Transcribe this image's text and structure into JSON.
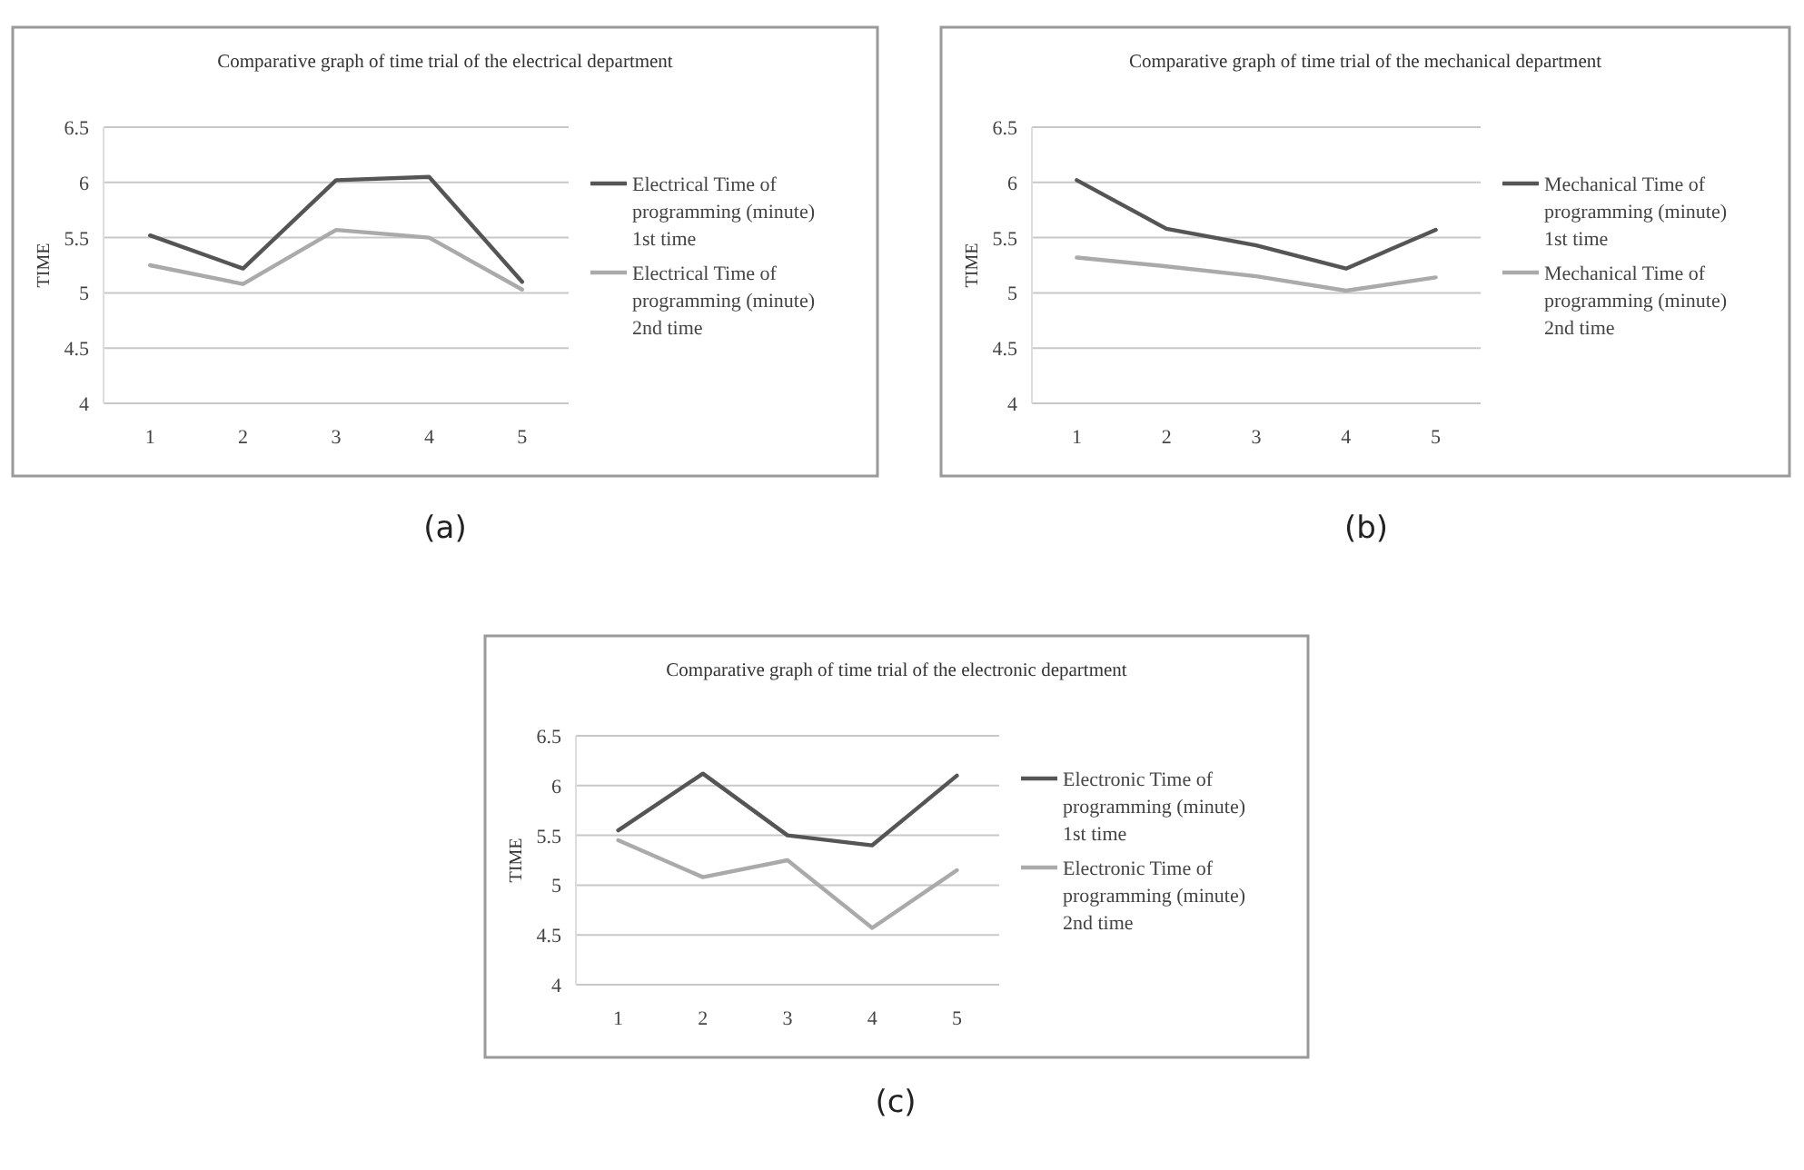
{
  "chart_data": [
    {
      "type": "line",
      "title": "Comparative graph  of time trial of the electrical department",
      "ylabel": "TIME",
      "categories": [
        "1",
        "2",
        "3",
        "4",
        "5"
      ],
      "ylim": [
        4,
        6.5
      ],
      "yticks": [
        4,
        4.5,
        5,
        5.5,
        6,
        6.5
      ],
      "grid": "y",
      "legend": "right",
      "annotations": [
        "(a)"
      ],
      "series": [
        {
          "name": "Electrical Time  of programming (minute) 1st time",
          "color": "#555555",
          "values": [
            5.52,
            5.22,
            6.02,
            6.05,
            5.1
          ]
        },
        {
          "name": "Electrical Time  of programming (minute)  2nd time",
          "color": "#aaaaaa",
          "values": [
            5.25,
            5.08,
            5.57,
            5.5,
            5.03
          ]
        }
      ]
    },
    {
      "type": "line",
      "title": "Comparative graph of time trial of the mechanical department",
      "ylabel": "TIME",
      "categories": [
        "1",
        "2",
        "3",
        "4",
        "5"
      ],
      "ylim": [
        4,
        6.5
      ],
      "yticks": [
        4,
        4.5,
        5,
        5.5,
        6,
        6.5
      ],
      "grid": "y",
      "legend": "right",
      "annotations": [
        "(b)"
      ],
      "series": [
        {
          "name": "Mechanical Time  of programming (minute) 1st time",
          "color": "#555555",
          "values": [
            6.02,
            5.58,
            5.43,
            5.22,
            5.57
          ]
        },
        {
          "name": "Mechanical Time  of programming (minute)  2nd time",
          "color": "#aaaaaa",
          "values": [
            5.32,
            5.24,
            5.15,
            5.02,
            5.14
          ]
        }
      ]
    },
    {
      "type": "line",
      "title": "Comparative graph of time trial of the electronic department",
      "ylabel": "TIME",
      "categories": [
        "1",
        "2",
        "3",
        "4",
        "5"
      ],
      "ylim": [
        4,
        6.5
      ],
      "yticks": [
        4,
        4.5,
        5,
        5.5,
        6,
        6.5
      ],
      "grid": "y",
      "legend": "right",
      "annotations": [
        "(c)"
      ],
      "series": [
        {
          "name": "Electronic Time  of programming (minute) 1st time",
          "color": "#555555",
          "values": [
            5.55,
            6.12,
            5.5,
            5.4,
            6.1
          ]
        },
        {
          "name": "Electronic Time  of programming (minute)  2nd time",
          "color": "#aaaaaa",
          "values": [
            5.45,
            5.08,
            5.25,
            4.57,
            5.15
          ]
        }
      ]
    }
  ]
}
